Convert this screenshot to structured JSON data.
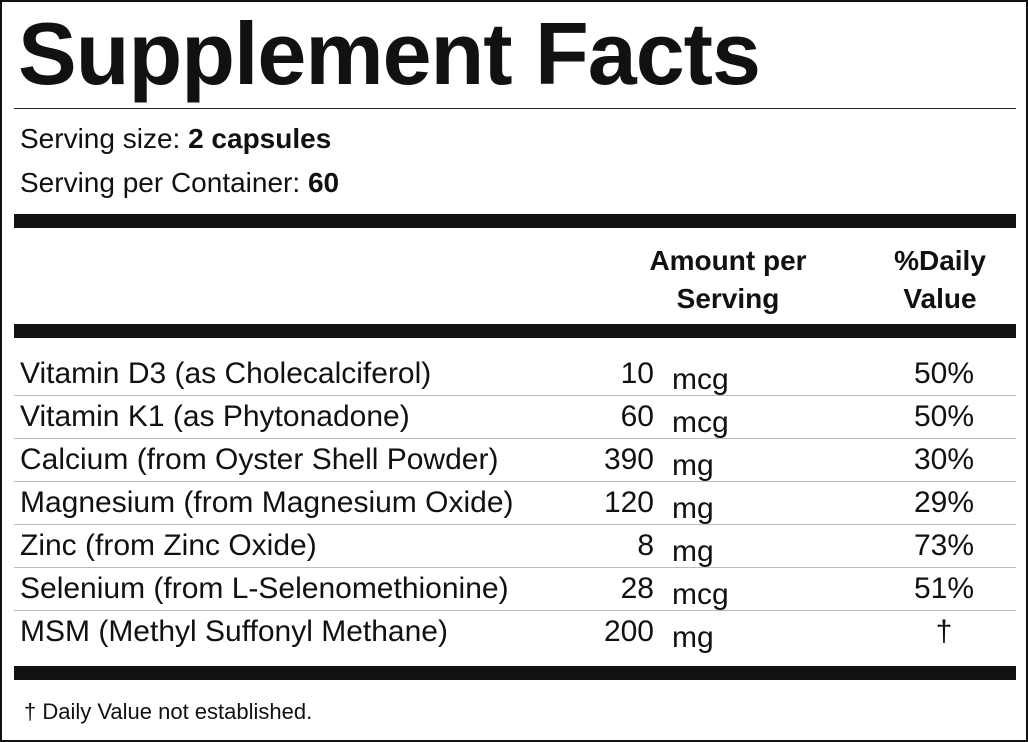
{
  "title": "Supplement Facts",
  "serving": {
    "size_label": "Serving size:",
    "size_value": "2 capsules",
    "per_container_label": "Serving per Container:",
    "per_container_value": "60"
  },
  "columns": {
    "amount_line1": "Amount per",
    "amount_line2": "Serving",
    "dv_line1": "%Daily",
    "dv_line2": "Value"
  },
  "nutrients": [
    {
      "name": "Vitamin D3 (as Cholecalciferol)",
      "amount": "10",
      "unit": "mcg",
      "dv": "50%"
    },
    {
      "name": "Vitamin K1 (as Phytonadone)",
      "amount": "60",
      "unit": "mcg",
      "dv": "50%"
    },
    {
      "name": "Calcium (from Oyster Shell Powder)",
      "amount": "390",
      "unit": "mg",
      "dv": "30%"
    },
    {
      "name": "Magnesium (from Magnesium Oxide)",
      "amount": "120",
      "unit": "mg",
      "dv": "29%"
    },
    {
      "name": "Zinc (from Zinc Oxide)",
      "amount": "8",
      "unit": "mg",
      "dv": "73%"
    },
    {
      "name": "Selenium (from L-Selenomethionine)",
      "amount": "28",
      "unit": "mcg",
      "dv": "51%"
    },
    {
      "name": "MSM (Methyl Suffonyl Methane)",
      "amount": "200",
      "unit": "mg",
      "dv": "†"
    }
  ],
  "footnote": "† Daily Value not established."
}
